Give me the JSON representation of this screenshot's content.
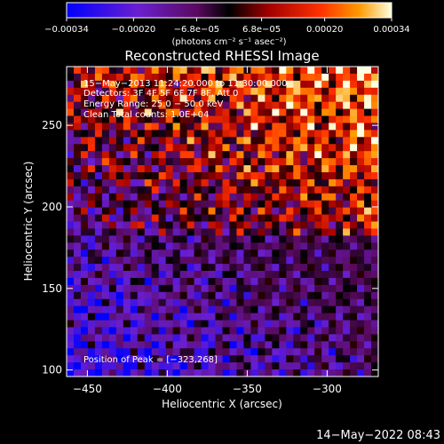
{
  "chart_data": {
    "type": "heatmap",
    "title": "Reconstructed RHESSI Image",
    "xlabel": "Heliocentric X (arcsec)",
    "ylabel": "Heliocentric Y (arcsec)",
    "xlim": [
      -463,
      -268
    ],
    "ylim": [
      96,
      286
    ],
    "x_ticks": [
      {
        "value": -450,
        "label": "−450"
      },
      {
        "value": -400,
        "label": "−400"
      },
      {
        "value": -350,
        "label": "−350"
      },
      {
        "value": -300,
        "label": "−300"
      }
    ],
    "y_ticks": [
      {
        "value": 100,
        "label": "100"
      },
      {
        "value": 150,
        "label": "150"
      },
      {
        "value": 200,
        "label": "200"
      },
      {
        "value": 250,
        "label": "250"
      }
    ],
    "colorbar": {
      "range": [
        -0.00034,
        0.00034
      ],
      "ticks": [
        {
          "value": -0.00034,
          "label": "−0.00034"
        },
        {
          "value": -0.0002,
          "label": "−0.00020"
        },
        {
          "value": -6.8e-05,
          "label": "−6.8e−05"
        },
        {
          "value": 6.8e-05,
          "label": "6.8e−05"
        },
        {
          "value": 0.0002,
          "label": "0.00020"
        },
        {
          "value": 0.00034,
          "label": "0.00034"
        }
      ],
      "units": "(photons cm⁻² s⁻¹ asec⁻²)"
    },
    "annotations": [
      "15−May−2013 11:24:20.000 to 11:30:00.000",
      "Detectors: 3F 4F 5F 6F 7F 8F, Att 0",
      "Energy Range: 25.0 − 50.0 keV",
      "Clean    Total counts: 1.0E+04"
    ],
    "peak_label": "Position of Peak = [−323,268]",
    "peak_position": [
      -323,
      268
    ]
  },
  "footer": {
    "timestamp": "14−May−2022 08:43"
  }
}
